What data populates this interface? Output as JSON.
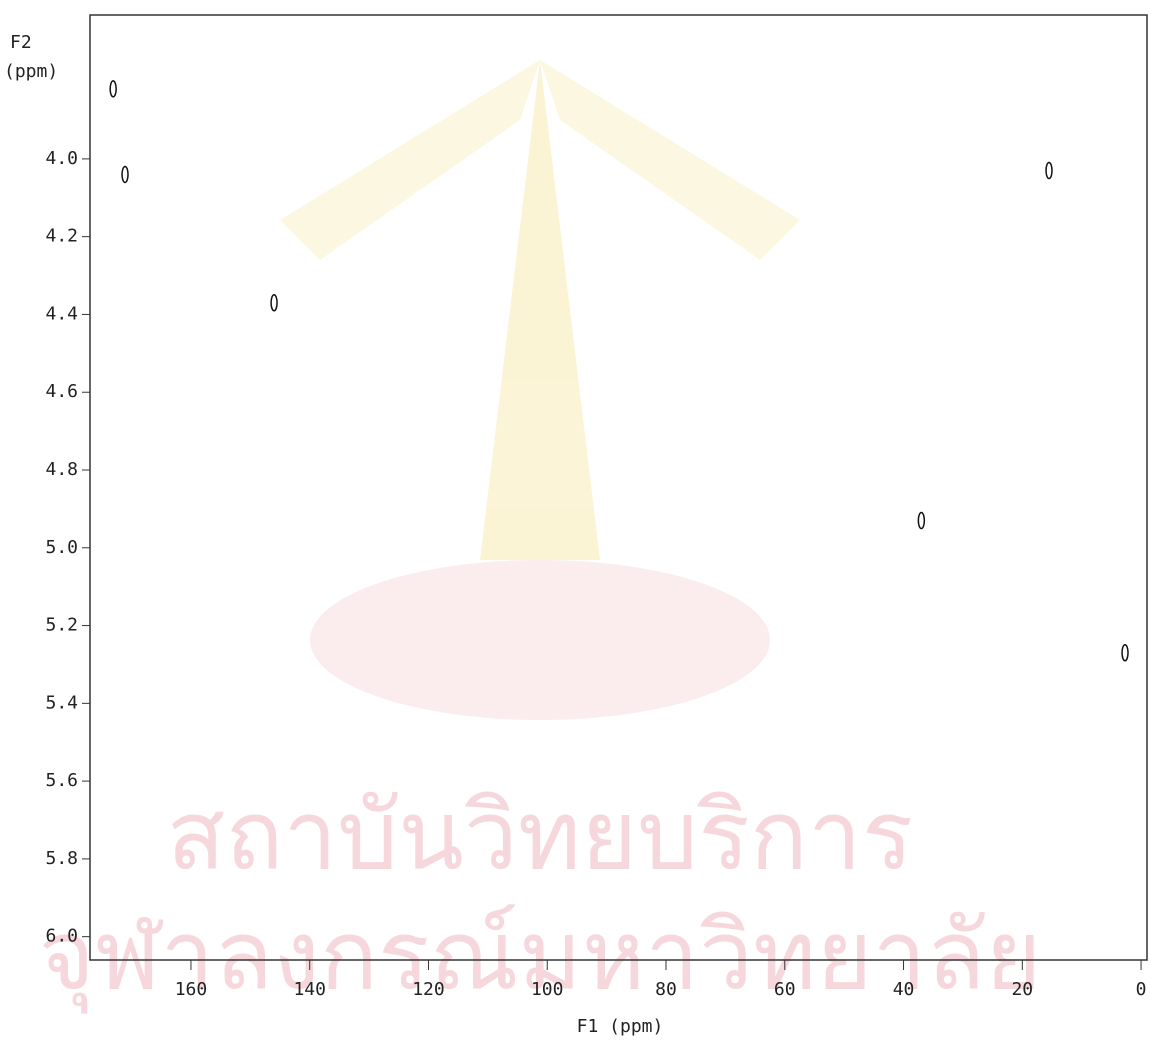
{
  "chart_data": {
    "type": "scatter",
    "x_label": "F1 (ppm)",
    "y_label": [
      "F2",
      "(ppm)"
    ],
    "watermark": [
      "สถาบันวิทยบริการ",
      "จุฬาลงกรณ์มหาวิทยาลัย"
    ],
    "x": [
      173.1,
      171.1,
      146,
      37,
      15.5,
      2.7
    ],
    "values": [
      3.82,
      4.04,
      4.37,
      4.93,
      4.03,
      5.27
    ],
    "color": "#111111",
    "xlim": [
      177,
      -1
    ],
    "ylim": [
      6.06,
      3.63
    ],
    "xticks": [
      160,
      140,
      120,
      100,
      80,
      60,
      40,
      20,
      0
    ],
    "yticks": [
      {
        "value": 4,
        "label": "4.0"
      },
      4.2,
      4.4,
      4.6,
      4.8,
      {
        "value": 5,
        "label": "5.0"
      },
      5.2,
      5.4,
      5.6,
      5.8,
      {
        "value": 6,
        "label": "6.0"
      }
    ]
  }
}
